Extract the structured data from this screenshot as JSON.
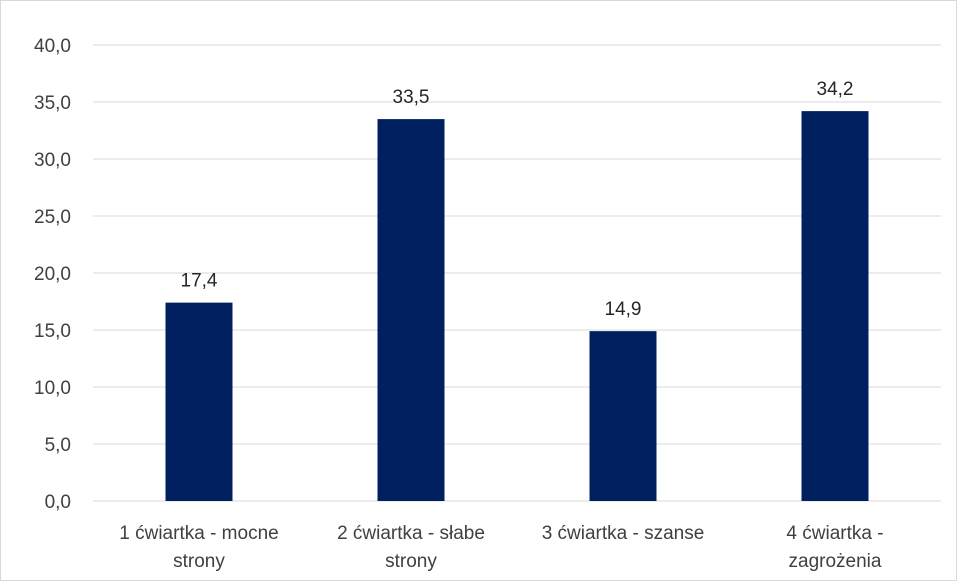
{
  "chart_data": {
    "type": "bar",
    "title": "",
    "xlabel": "",
    "ylabel": "",
    "categories": [
      [
        "1 ćwiartka - mocne",
        "strony"
      ],
      [
        "2 ćwiartka - słabe",
        "strony"
      ],
      [
        "3 ćwiartka - szanse"
      ],
      [
        "4 ćwiartka -",
        "zagrożenia"
      ]
    ],
    "values": [
      17.4,
      33.5,
      14.9,
      34.2
    ],
    "data_labels": [
      "17,4",
      "33,5",
      "14,9",
      "34,2"
    ],
    "ylim": [
      0,
      40
    ],
    "yticks": [
      0,
      5,
      10,
      15,
      20,
      25,
      30,
      35,
      40
    ],
    "ytick_labels": [
      "0,0",
      "5,0",
      "10,0",
      "15,0",
      "20,0",
      "25,0",
      "30,0",
      "35,0",
      "40,0"
    ],
    "grid": true,
    "legend": "none",
    "bar_color": "#002060",
    "grid_color": "#d9d9d9"
  }
}
